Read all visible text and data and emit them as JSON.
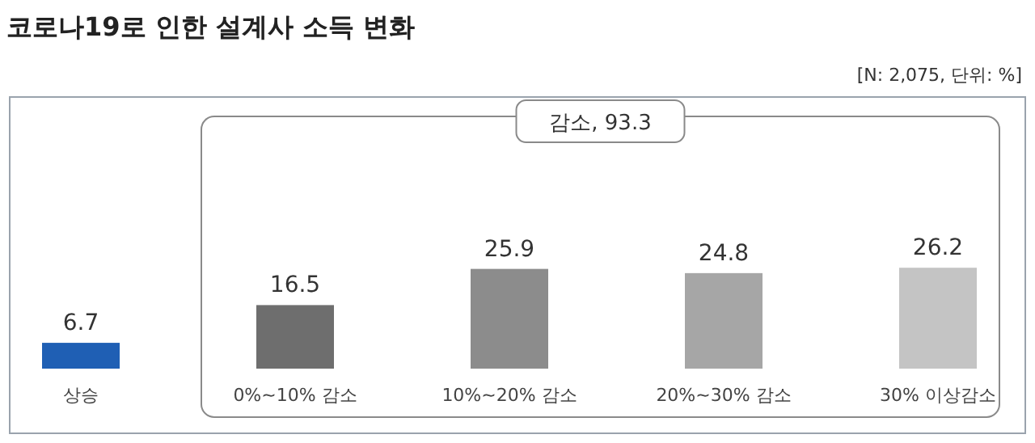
{
  "chart_data": {
    "type": "bar",
    "title": "코로나19로 인한 설계사 소득 변화",
    "annotations": [
      "[N: 2,075, 단위: %]",
      "감소, 93.3"
    ],
    "categories": [
      "상승",
      "0%~10% 감소",
      "10%~20% 감소",
      "20%~30% 감소",
      "30% 이상감소"
    ],
    "values": [
      6.7,
      16.5,
      25.9,
      24.8,
      26.2
    ],
    "colors": [
      "#1f5fb4",
      "#6e6e6e",
      "#8c8c8c",
      "#a6a6a6",
      "#c4c4c4"
    ],
    "data_labels": true
  }
}
